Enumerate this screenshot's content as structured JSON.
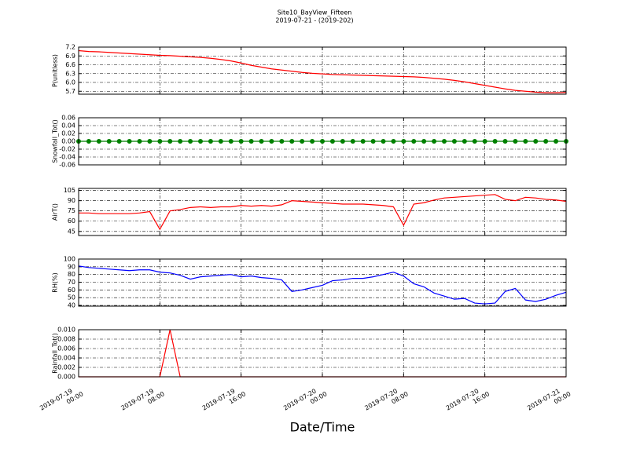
{
  "title": "Site10_BayView_Fifteen",
  "subtitle": "2019-07-21 - (2019-202)",
  "xlabel": "Date/Time",
  "xlim": [
    "2019-07-19 00:00",
    "2019-07-21 00:00"
  ],
  "xticks": [
    "2019-07-19 00:00",
    "2019-07-19 08:00",
    "2019-07-19 16:00",
    "2019-07-20 00:00",
    "2019-07-20 08:00",
    "2019-07-20 16:00",
    "2019-07-21 00:00"
  ],
  "x": [
    "2019-07-19 00:00",
    "2019-07-19 01:00",
    "2019-07-19 02:00",
    "2019-07-19 03:00",
    "2019-07-19 04:00",
    "2019-07-19 05:00",
    "2019-07-19 06:00",
    "2019-07-19 07:00",
    "2019-07-19 08:00",
    "2019-07-19 09:00",
    "2019-07-19 10:00",
    "2019-07-19 11:00",
    "2019-07-19 12:00",
    "2019-07-19 13:00",
    "2019-07-19 14:00",
    "2019-07-19 15:00",
    "2019-07-19 16:00",
    "2019-07-19 17:00",
    "2019-07-19 18:00",
    "2019-07-19 19:00",
    "2019-07-19 20:00",
    "2019-07-19 21:00",
    "2019-07-19 22:00",
    "2019-07-19 23:00",
    "2019-07-20 00:00",
    "2019-07-20 01:00",
    "2019-07-20 02:00",
    "2019-07-20 03:00",
    "2019-07-20 04:00",
    "2019-07-20 05:00",
    "2019-07-20 06:00",
    "2019-07-20 07:00",
    "2019-07-20 08:00",
    "2019-07-20 09:00",
    "2019-07-20 10:00",
    "2019-07-20 11:00",
    "2019-07-20 12:00",
    "2019-07-20 13:00",
    "2019-07-20 14:00",
    "2019-07-20 15:00",
    "2019-07-20 16:00",
    "2019-07-20 17:00",
    "2019-07-20 18:00",
    "2019-07-20 19:00",
    "2019-07-20 20:00",
    "2019-07-20 21:00",
    "2019-07-20 22:00",
    "2019-07-20 23:00",
    "2019-07-21 00:00"
  ],
  "chart_data": [
    {
      "type": "line",
      "ylabel": "P(unitless)",
      "color": "#ff0000",
      "ylim": [
        5.6,
        7.2
      ],
      "yticks": [
        7.2,
        6.9,
        6.6,
        6.3,
        {
          "value": 6,
          "label": "6.0"
        },
        5.7
      ],
      "values": [
        7.08,
        7.05,
        7.04,
        7.02,
        7.0,
        6.98,
        6.96,
        6.94,
        6.92,
        6.91,
        6.89,
        6.87,
        6.85,
        6.82,
        6.78,
        6.73,
        6.66,
        6.58,
        6.52,
        6.46,
        6.42,
        6.38,
        6.34,
        6.31,
        6.29,
        6.27,
        6.26,
        6.25,
        6.24,
        6.23,
        6.22,
        6.21,
        6.2,
        6.19,
        6.17,
        6.14,
        6.11,
        6.07,
        6.02,
        5.96,
        5.9,
        5.84,
        5.78,
        5.73,
        5.7,
        5.67,
        5.65,
        5.65,
        5.66
      ]
    },
    {
      "type": "line",
      "ylabel": "Snowfall_Tot()",
      "color": "#008000",
      "marker": true,
      "ylim": [
        -0.06,
        0.06
      ],
      "yticks": [
        0.06,
        0.04,
        0.02,
        {
          "value": 0,
          "label": "0.00"
        },
        -0.02,
        -0.04,
        -0.06
      ],
      "values": [
        0,
        0,
        0,
        0,
        0,
        0,
        0,
        0,
        0,
        0,
        0,
        0,
        0,
        0,
        0,
        0,
        0,
        0,
        0,
        0,
        0,
        0,
        0,
        0,
        0,
        0,
        0,
        0,
        0,
        0,
        0,
        0,
        0,
        0,
        0,
        0,
        0,
        0,
        0,
        0,
        0,
        0,
        0,
        0,
        0,
        0,
        0,
        0,
        0
      ]
    },
    {
      "type": "line",
      "ylabel": "AirT()",
      "color": "#ff0000",
      "ylim": [
        39,
        108
      ],
      "yticks": [
        105,
        90,
        75,
        60,
        45
      ],
      "values": [
        72,
        72,
        71,
        71,
        71,
        71,
        72,
        74,
        48,
        75,
        77,
        80,
        81,
        80,
        81,
        81,
        83,
        82,
        83,
        82,
        84,
        90,
        89,
        88,
        87,
        86,
        85,
        85,
        85,
        84,
        83,
        81,
        54,
        85,
        87,
        91,
        94,
        95,
        96,
        97,
        98,
        99,
        92,
        90,
        95,
        94,
        92,
        91,
        89
      ]
    },
    {
      "type": "line",
      "ylabel": "RH(%)",
      "color": "#0000ff",
      "ylim": [
        39,
        100
      ],
      "yticks": [
        100,
        90,
        80,
        70,
        60,
        50,
        40
      ],
      "values": [
        91,
        89,
        88,
        87,
        86,
        85,
        86,
        86,
        83,
        82,
        79,
        74,
        77,
        78,
        79,
        80,
        77,
        78,
        76,
        75,
        73,
        58,
        60,
        63,
        66,
        72,
        73,
        75,
        75,
        77,
        80,
        83,
        78,
        68,
        64,
        56,
        52,
        48,
        49,
        43,
        42,
        43,
        58,
        62,
        47,
        45,
        48,
        53,
        57
      ]
    },
    {
      "type": "line",
      "ylabel": "Rainfall_Tot()",
      "color": "#ff0000",
      "ylim": [
        0,
        0.01
      ],
      "yticks": [
        {
          "value": 0.01,
          "label": "0.010"
        },
        {
          "value": 0.008,
          "label": "0.008"
        },
        {
          "value": 0.006,
          "label": "0.006"
        },
        {
          "value": 0.004,
          "label": "0.004"
        },
        {
          "value": 0.002,
          "label": "0.002"
        },
        {
          "value": 0,
          "label": "0.000"
        }
      ],
      "values": [
        0,
        0,
        0,
        0,
        0,
        0,
        0,
        0,
        0,
        0.01,
        0,
        0,
        0,
        0,
        0,
        0,
        0,
        0,
        0,
        0,
        0,
        0,
        0,
        0,
        0,
        0,
        0,
        0,
        0,
        0,
        0,
        0,
        0,
        0,
        0,
        0,
        0,
        0,
        0,
        0,
        0,
        0,
        0,
        0,
        0,
        0,
        0,
        0,
        0
      ]
    }
  ]
}
